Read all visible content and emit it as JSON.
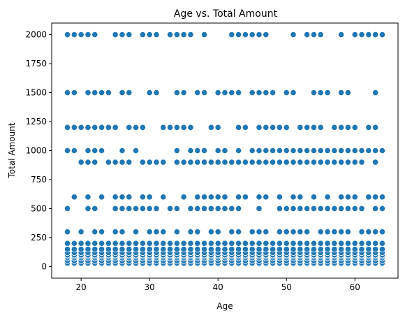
{
  "chart_data": {
    "type": "scatter",
    "title": "Age vs. Total Amount",
    "xlabel": "Age",
    "ylabel": "Total Amount",
    "xlim": [
      15.7,
      66.3
    ],
    "ylim": [
      -100,
      2100
    ],
    "x_ticks": [
      20,
      30,
      40,
      50,
      60
    ],
    "y_ticks": [
      0,
      250,
      500,
      750,
      1000,
      1250,
      1500,
      1750,
      2000
    ],
    "grid": false,
    "legend": "none",
    "marker_color": "#1f77b4",
    "marker_edge_color": "#ffffff",
    "age_range": [
      18,
      64
    ],
    "amount_levels": [
      25,
      30,
      50,
      75,
      90,
      100,
      120,
      150,
      200,
      300,
      500,
      600,
      900,
      1000,
      1200,
      1500,
      2000
    ],
    "points": {
      "2000": [
        18,
        19,
        20,
        21,
        22,
        25,
        26,
        27,
        29,
        30,
        31,
        33,
        34,
        35,
        36,
        38,
        42,
        43,
        44,
        45,
        46,
        47,
        51,
        53,
        54,
        55,
        58,
        60,
        61,
        62,
        63,
        64
      ],
      "1500": [
        18,
        19,
        21,
        22,
        23,
        24,
        26,
        27,
        30,
        31,
        34,
        35,
        37,
        38,
        40,
        41,
        42,
        43,
        45,
        46,
        47,
        48,
        50,
        51,
        54,
        55,
        56,
        58,
        59,
        63
      ],
      "1200": [
        18,
        19,
        20,
        21,
        22,
        23,
        24,
        25,
        27,
        28,
        29,
        32,
        33,
        34,
        35,
        36,
        39,
        40,
        43,
        44,
        46,
        47,
        48,
        49,
        50,
        52,
        53,
        54,
        55,
        57,
        58,
        59,
        60,
        62,
        63
      ],
      "1000": [
        18,
        19,
        21,
        22,
        23,
        26,
        28,
        34,
        36,
        37,
        38,
        40,
        41,
        43,
        45,
        46,
        47,
        48,
        49,
        50,
        51,
        52,
        53,
        54,
        55,
        56,
        57,
        58,
        59,
        60,
        61,
        62,
        63,
        64
      ],
      "900": [
        20,
        21,
        22,
        24,
        25,
        26,
        27,
        29,
        30,
        31,
        32,
        34,
        35,
        36,
        37,
        38,
        39,
        40,
        41,
        42,
        43,
        44,
        45,
        46,
        47,
        48,
        49,
        50,
        51,
        52,
        53,
        54,
        55,
        56,
        57,
        58,
        59,
        60,
        61,
        63
      ],
      "600": [
        19,
        21,
        23,
        25,
        26,
        27,
        29,
        30,
        32,
        35,
        37,
        38,
        39,
        40,
        41,
        43,
        44,
        46,
        47,
        49,
        51,
        52,
        54,
        56,
        58,
        59,
        60,
        62,
        63,
        64
      ],
      "500": [
        18,
        21,
        22,
        25,
        26,
        27,
        28,
        29,
        30,
        31,
        33,
        34,
        36,
        37,
        38,
        39,
        40,
        41,
        42,
        43,
        46,
        49,
        50,
        51,
        52,
        53,
        54,
        55,
        56,
        57,
        58,
        59,
        60,
        61,
        63,
        64
      ],
      "300": [
        18,
        20,
        22,
        23,
        25,
        26,
        28,
        30,
        31,
        32,
        34,
        36,
        37,
        39,
        40,
        42,
        43,
        45,
        46,
        47,
        49,
        50,
        51,
        52,
        53,
        55,
        56,
        57,
        58,
        59,
        61,
        62,
        63,
        64
      ]
    },
    "dense_bands": {
      "ages": [
        18,
        19,
        20,
        21,
        22,
        23,
        24,
        25,
        26,
        27,
        28,
        29,
        30,
        31,
        32,
        33,
        34,
        35,
        36,
        37,
        38,
        39,
        40,
        41,
        42,
        43,
        44,
        45,
        46,
        47,
        48,
        49,
        50,
        51,
        52,
        53,
        54,
        55,
        56,
        57,
        58,
        59,
        60,
        61,
        62,
        63,
        64
      ],
      "values": [
        25,
        30,
        50,
        75,
        90,
        100,
        120,
        150,
        200
      ]
    }
  }
}
